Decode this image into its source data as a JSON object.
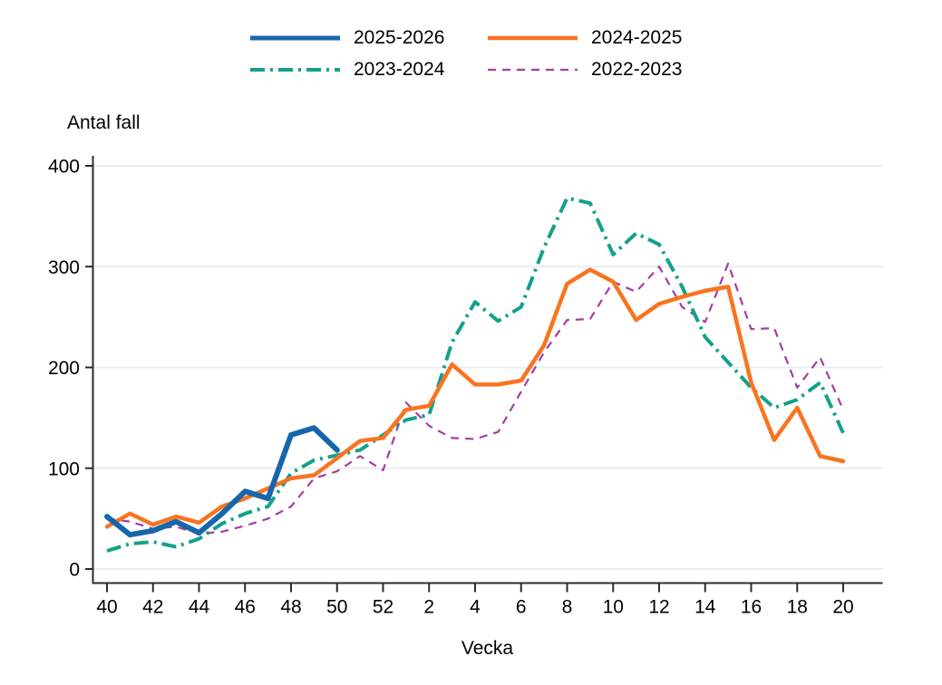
{
  "chart_data": {
    "type": "line",
    "title": "Antal fall",
    "xlabel": "Vecka",
    "ylabel": "Antal fall",
    "x_categories": [
      "40",
      "41",
      "42",
      "43",
      "44",
      "45",
      "46",
      "47",
      "48",
      "49",
      "50",
      "51",
      "52",
      "1",
      "2",
      "3",
      "4",
      "5",
      "6",
      "7",
      "8",
      "9",
      "10",
      "11",
      "12",
      "13",
      "14",
      "15",
      "16",
      "17",
      "18",
      "19",
      "20"
    ],
    "x_tick_labels": [
      "40",
      "42",
      "44",
      "46",
      "48",
      "50",
      "52",
      "2",
      "4",
      "6",
      "8",
      "10",
      "12",
      "14",
      "16",
      "18",
      "20"
    ],
    "y_ticks": [
      0,
      100,
      200,
      300,
      400
    ],
    "ylim": [
      0,
      400
    ],
    "grid": "horizontal-light",
    "legend_position": "top-center",
    "colors": {
      "grid": "#e8eef2",
      "axis": "#2b2b2b",
      "text": "#000000"
    },
    "series": [
      {
        "name": "2025-2026",
        "color": "#1766ac",
        "line_style": "solid",
        "line_width": 6,
        "values": [
          52,
          34,
          38,
          47,
          36,
          55,
          77,
          70,
          133,
          140,
          118,
          null,
          null,
          null,
          null,
          null,
          null,
          null,
          null,
          null,
          null,
          null,
          null,
          null,
          null,
          null,
          null,
          null,
          null,
          null,
          null,
          null,
          null
        ]
      },
      {
        "name": "2024-2025",
        "color": "#f87420",
        "line_style": "solid",
        "line_width": 4.5,
        "values": [
          42,
          55,
          44,
          52,
          46,
          62,
          70,
          80,
          90,
          93,
          110,
          127,
          130,
          158,
          162,
          203,
          183,
          183,
          187,
          222,
          283,
          297,
          285,
          247,
          263,
          270,
          276,
          280,
          185,
          128,
          160,
          112,
          107
        ]
      },
      {
        "name": "2023-2024",
        "color": "#14a08a",
        "line_style": "dashdot",
        "line_width": 4,
        "values": [
          18,
          25,
          27,
          22,
          30,
          45,
          55,
          62,
          95,
          108,
          113,
          118,
          133,
          148,
          153,
          225,
          265,
          246,
          260,
          319,
          368,
          363,
          312,
          333,
          322,
          280,
          230,
          205,
          180,
          160,
          168,
          185,
          135
        ]
      },
      {
        "name": "2022-2023",
        "color": "#a63d9f",
        "line_style": "dashed",
        "line_width": 2.2,
        "values": [
          50,
          47,
          40,
          42,
          35,
          37,
          43,
          50,
          62,
          90,
          97,
          112,
          98,
          165,
          142,
          130,
          129,
          136,
          176,
          215,
          247,
          248,
          285,
          275,
          300,
          260,
          245,
          303,
          238,
          239,
          180,
          210,
          158
        ]
      }
    ]
  }
}
